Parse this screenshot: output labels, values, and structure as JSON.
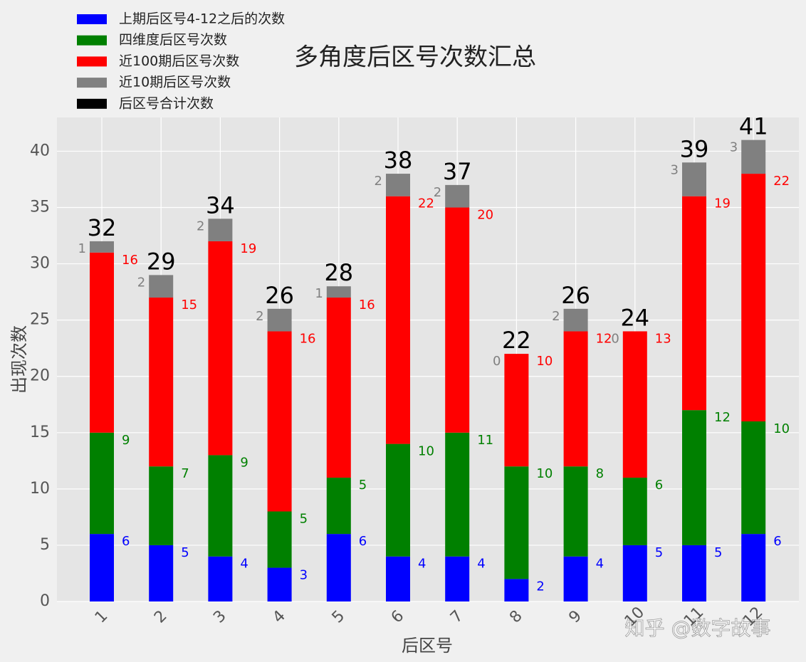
{
  "chart_data": {
    "type": "stacked_bar",
    "title": "多角度后区号次数汇总",
    "xlabel": "后区号",
    "ylabel": "出现次数",
    "categories": [
      "1",
      "2",
      "3",
      "4",
      "5",
      "6",
      "7",
      "8",
      "9",
      "10",
      "11",
      "12"
    ],
    "series": [
      {
        "name": "上期后区号4-12之后的次数",
        "color": "#0000ff",
        "values": [
          6,
          5,
          4,
          3,
          6,
          4,
          4,
          2,
          4,
          5,
          5,
          6
        ]
      },
      {
        "name": "四维度后区号次数",
        "color": "#008000",
        "values": [
          9,
          7,
          9,
          5,
          5,
          10,
          11,
          10,
          8,
          6,
          12,
          10
        ]
      },
      {
        "name": "近100期后区号次数",
        "color": "#ff0000",
        "values": [
          16,
          15,
          19,
          16,
          16,
          22,
          20,
          10,
          12,
          13,
          19,
          22
        ]
      },
      {
        "name": "近10期后区号次数",
        "color": "#808080",
        "values": [
          1,
          2,
          2,
          2,
          1,
          2,
          2,
          0,
          2,
          0,
          3,
          3
        ]
      }
    ],
    "totals": {
      "name": "后区号合计次数",
      "color": "#000000",
      "values": [
        32,
        29,
        34,
        26,
        28,
        38,
        37,
        22,
        26,
        24,
        39,
        41
      ]
    },
    "ylim": [
      0,
      43
    ],
    "yticks": [
      0,
      5,
      10,
      15,
      20,
      25,
      30,
      35,
      40
    ],
    "grid": true,
    "watermark": "知乎 @数字故事"
  }
}
